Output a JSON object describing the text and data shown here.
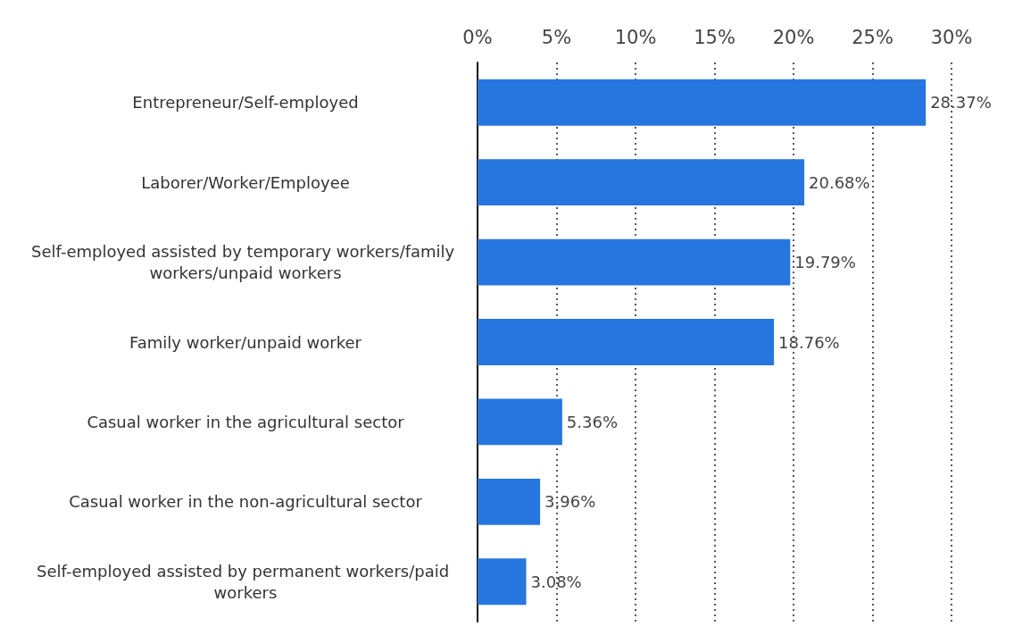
{
  "chart_data": {
    "type": "bar",
    "orientation": "horizontal",
    "categories": [
      "Entrepreneur/Self-employed",
      "Laborer/Worker/Employee",
      "Self-employed assisted by temporary workers/family workers/unpaid workers",
      "Family worker/unpaid worker",
      "Casual worker in the agricultural sector",
      "Casual worker in the non-agricultural sector",
      "Self-employed assisted by permanent workers/paid workers"
    ],
    "values": [
      28.37,
      20.68,
      19.79,
      18.76,
      5.36,
      3.96,
      3.08
    ],
    "value_labels": [
      "28.37%",
      "20.68%",
      "19.79%",
      "18.76%",
      "5.36%",
      "3.96%",
      "3.08%"
    ],
    "color": "#2775de",
    "xlim": [
      0,
      30
    ],
    "xticks": [
      {
        "value": 0,
        "label": "0%"
      },
      {
        "value": 5,
        "label": "5%"
      },
      {
        "value": 10,
        "label": "10%"
      },
      {
        "value": 15,
        "label": "15%"
      },
      {
        "value": 20,
        "label": "20%"
      },
      {
        "value": 25,
        "label": "25%"
      },
      {
        "value": 30,
        "label": "30%"
      }
    ],
    "grid": "x"
  }
}
